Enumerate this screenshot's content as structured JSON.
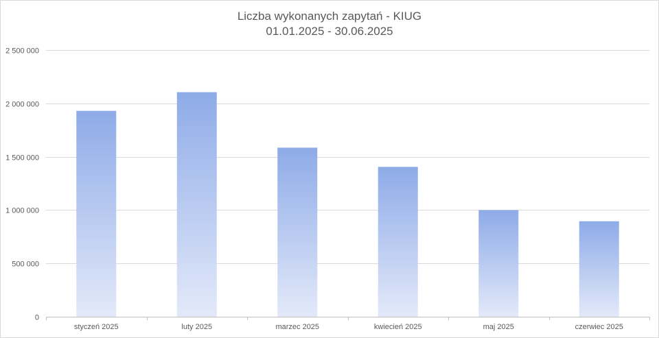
{
  "chart_data": {
    "type": "bar",
    "title": "Liczba wykonanych zapytań - KIUG",
    "subtitle": "01.01.2025 - 30.06.2025",
    "xlabel": "",
    "ylabel": "",
    "categories": [
      "styczeń 2025",
      "luty 2025",
      "marzec 2025",
      "kwiecień 2025",
      "maj 2025",
      "czerwiec 2025"
    ],
    "values": [
      1930000,
      2105000,
      1585000,
      1405000,
      1000000,
      895000
    ],
    "ylim": [
      0,
      2500000
    ],
    "yticks": [
      {
        "value": 0,
        "label": "0"
      },
      {
        "value": 500000,
        "label": "500 000"
      },
      {
        "value": 1000000,
        "label": "1 000 000"
      },
      {
        "value": 1500000,
        "label": "1 500 000"
      },
      {
        "value": 2000000,
        "label": "2 000 000"
      },
      {
        "value": 2500000,
        "label": "2 500 000"
      }
    ],
    "grid": true,
    "legend": "none",
    "colors": {
      "bar_top": "#8eabe8",
      "bar_bottom": "#e3e9f9",
      "grid": "#d9d9d9",
      "axis": "#bfbfbf",
      "text": "#595959"
    }
  }
}
